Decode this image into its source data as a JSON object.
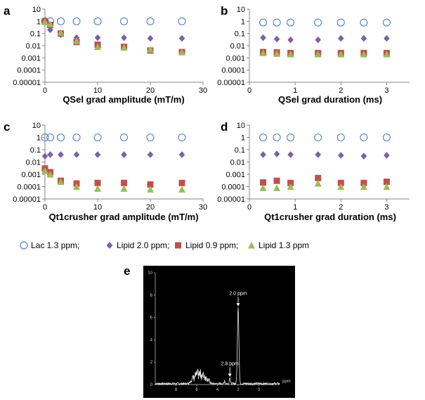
{
  "panel_labels": [
    "a",
    "b",
    "c",
    "d",
    "e"
  ],
  "legend": {
    "entries": [
      {
        "label": "Lac 1.3 ppm;",
        "marker": "circle",
        "color": "#4f81bd"
      },
      {
        "label": "Lipid 2.0 ppm;",
        "marker": "diamond",
        "color": "#7f5fa8"
      },
      {
        "label": "Lipid 0.9 ppm;",
        "marker": "square",
        "color": "#c0504d"
      },
      {
        "label": "Lipid 1.3 ppm",
        "marker": "triangle",
        "color": "#9bbb59"
      }
    ]
  },
  "chart_data": [
    {
      "id": "a",
      "type": "scatter",
      "yscale": "log",
      "xlabel": "QSel grad amplitude (mT/m)",
      "ylabel": "",
      "xlim": [
        0,
        30
      ],
      "xticks": [
        "0",
        "10",
        "20",
        "30"
      ],
      "ylim": [
        1e-05,
        10
      ],
      "yticks": [
        "0.00001",
        "0.0001",
        "0.001",
        "0.01",
        "0.1",
        "1",
        "10"
      ],
      "x": [
        0,
        1,
        3,
        6,
        10,
        15,
        20,
        26
      ],
      "series": [
        {
          "name": "Lac 1.3 ppm",
          "values": [
            1,
            1,
            1,
            1,
            1,
            1,
            1,
            1
          ]
        },
        {
          "name": "Lipid 2.0 ppm",
          "values": [
            1,
            0.2,
            0.08,
            0.045,
            0.045,
            0.045,
            0.04,
            0.04
          ]
        },
        {
          "name": "Lipid 0.9 ppm",
          "values": [
            1,
            0.5,
            0.1,
            0.02,
            0.012,
            0.008,
            0.004,
            0.003
          ]
        },
        {
          "name": "Lipid 1.3 ppm",
          "values": [
            0.9,
            0.6,
            0.12,
            0.025,
            0.008,
            0.007,
            0.005,
            0.003
          ]
        }
      ]
    },
    {
      "id": "b",
      "type": "scatter",
      "yscale": "log",
      "xlabel": "QSel grad duration (ms)",
      "ylabel": "",
      "xlim": [
        0,
        3.5
      ],
      "xticks": [
        "0",
        "1",
        "2",
        "3"
      ],
      "ylim": [
        1e-05,
        10
      ],
      "yticks": [
        "0.00001",
        "0.0001",
        "0.001",
        "0.01",
        "0.1",
        "1",
        "10"
      ],
      "x": [
        0.3,
        0.6,
        0.9,
        1.5,
        2.0,
        2.5,
        3.0
      ],
      "series": [
        {
          "name": "Lac 1.3 ppm",
          "values": [
            0.8,
            0.8,
            0.8,
            0.8,
            0.8,
            0.8,
            0.8
          ]
        },
        {
          "name": "Lipid 2.0 ppm",
          "values": [
            0.045,
            0.035,
            0.03,
            0.03,
            0.04,
            0.04,
            0.04
          ]
        },
        {
          "name": "Lipid 0.9 ppm",
          "values": [
            0.003,
            0.0028,
            0.0025,
            0.0025,
            0.0025,
            0.0025,
            0.0025
          ]
        },
        {
          "name": "Lipid 1.3 ppm",
          "values": [
            0.0025,
            0.0022,
            0.002,
            0.002,
            0.002,
            0.002,
            0.002
          ]
        }
      ]
    },
    {
      "id": "c",
      "type": "scatter",
      "yscale": "log",
      "xlabel": "Qt1crusher grad amplitude (mT/m)",
      "ylabel": "",
      "xlim": [
        0,
        30
      ],
      "xticks": [
        "0",
        "10",
        "20",
        "30"
      ],
      "ylim": [
        1e-05,
        10
      ],
      "yticks": [
        "0.00001",
        "0.0001",
        "0.001",
        "0.01",
        "0.1",
        "1",
        "10"
      ],
      "x": [
        0,
        1,
        3,
        6,
        10,
        15,
        20,
        26
      ],
      "series": [
        {
          "name": "Lac 1.3 ppm",
          "values": [
            1,
            1,
            1,
            1,
            1,
            1,
            1,
            1
          ]
        },
        {
          "name": "Lipid 2.0 ppm",
          "values": [
            0.03,
            0.04,
            0.04,
            0.04,
            0.04,
            0.04,
            0.04,
            0.04
          ]
        },
        {
          "name": "Lipid 0.9 ppm",
          "values": [
            0.003,
            0.0015,
            0.0003,
            0.00018,
            0.0002,
            0.0002,
            0.00015,
            0.0002
          ]
        },
        {
          "name": "Lipid 1.3 ppm",
          "values": [
            0.002,
            0.001,
            0.00025,
            0.0001,
            7e-05,
            7e-05,
            6e-05,
            6e-05
          ]
        }
      ]
    },
    {
      "id": "d",
      "type": "scatter",
      "yscale": "log",
      "xlabel": "Qt1crusher grad duration (ms)",
      "ylabel": "",
      "xlim": [
        0,
        3.5
      ],
      "xticks": [
        "0",
        "1",
        "2",
        "3"
      ],
      "ylim": [
        1e-05,
        10
      ],
      "yticks": [
        "0.00001",
        "0.0001",
        "0.001",
        "0.01",
        "0.1",
        "1",
        "10"
      ],
      "x": [
        0.3,
        0.6,
        0.9,
        1.5,
        2.0,
        2.5,
        3.0
      ],
      "series": [
        {
          "name": "Lac 1.3 ppm",
          "values": [
            1,
            1,
            1,
            1,
            1,
            1,
            1
          ]
        },
        {
          "name": "Lipid 2.0 ppm",
          "values": [
            0.04,
            0.045,
            0.04,
            0.04,
            0.035,
            0.03,
            0.035
          ]
        },
        {
          "name": "Lipid 0.9 ppm",
          "values": [
            0.00022,
            0.0003,
            0.0002,
            0.0005,
            0.0002,
            0.0002,
            0.00025
          ]
        },
        {
          "name": "Lipid 1.3 ppm",
          "values": [
            8e-05,
            8e-05,
            0.0001,
            0.00018,
            0.0001,
            0.0001,
            0.0001
          ]
        }
      ]
    },
    {
      "id": "e",
      "type": "line",
      "title": "",
      "xlabel": "ppm",
      "ylabel": "",
      "xlim": [
        10,
        -2
      ],
      "ylim": [
        0,
        10
      ],
      "xticks": [
        "8",
        "6",
        "4",
        "2",
        "0"
      ],
      "yticks": [
        "0",
        "2",
        "4",
        "6",
        "8",
        "10"
      ],
      "annotations": [
        {
          "label": "2.0 ppm",
          "x": 2.0,
          "y": 6.9
        },
        {
          "label": "2.8 ppm",
          "x": 2.8,
          "y": 0.6
        }
      ],
      "peaks": [
        {
          "x": 2.0,
          "height": 6.9,
          "width": 0.1
        },
        {
          "x": 2.8,
          "height": 0.6,
          "width": 0.07
        },
        {
          "x": 3.3,
          "height": 0.3,
          "width": 0.05
        }
      ],
      "broad_region": {
        "from": 6.8,
        "to": 4.6,
        "max_height": 1.3
      }
    }
  ]
}
